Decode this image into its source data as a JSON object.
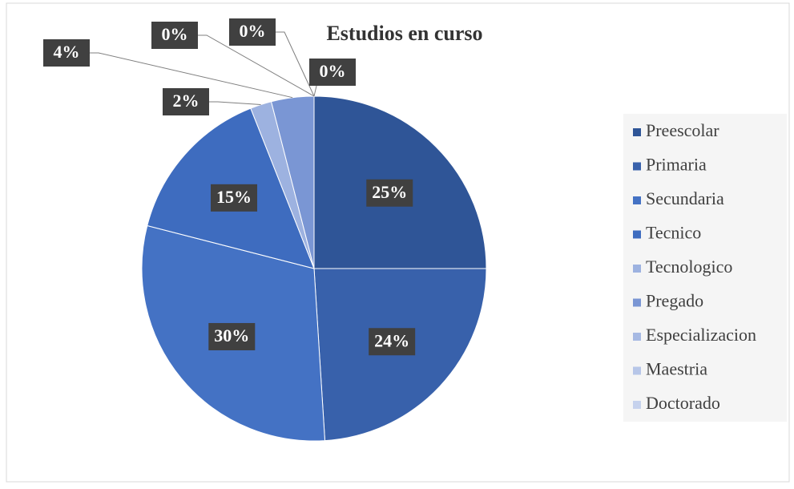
{
  "chart_data": {
    "type": "pie",
    "title": "Estudios en curso",
    "categories": [
      "Preescolar",
      "Primaria",
      "Secundaria",
      "Tecnico",
      "Tecnologico",
      "Pregado",
      "Especializacion",
      "Maestria",
      "Doctorado"
    ],
    "values": [
      25,
      24,
      30,
      15,
      2,
      4,
      0,
      0,
      0
    ],
    "value_labels": [
      "25%",
      "24%",
      "30%",
      "15%",
      "2%",
      "4%",
      "0%",
      "0%",
      "0%"
    ],
    "colors": [
      "#2f5597",
      "#3861ab",
      "#4472c4",
      "#3e6cbf",
      "#9db2e0",
      "#7a96d4",
      "#a6b9e3",
      "#b7c6e8",
      "#c6d2ed"
    ],
    "legend": "right"
  }
}
